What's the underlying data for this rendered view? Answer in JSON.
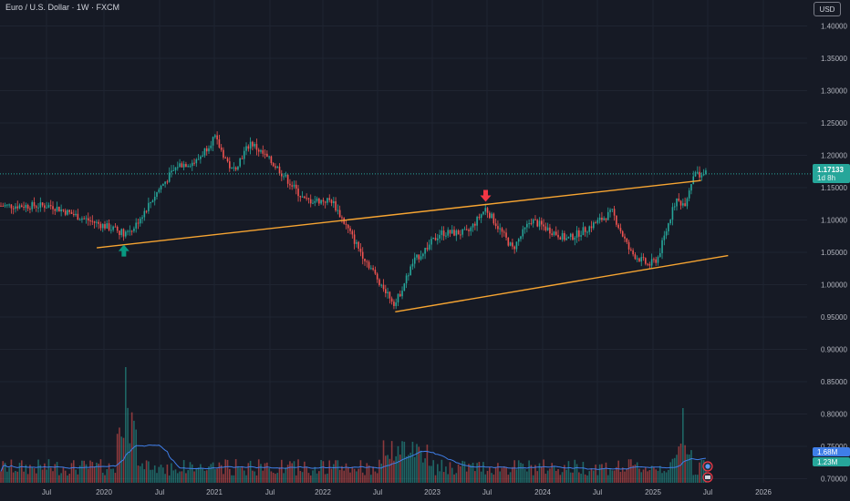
{
  "header": {
    "title": "Euro / U.S. Dollar · 1W · FXCM",
    "currency_button": "USD"
  },
  "colors": {
    "background": "#161a25",
    "up": "#26a69a",
    "down": "#ef5350",
    "trendline": "#f7a532",
    "volume_ma": "#3f7ee8",
    "grid": "#1f2431"
  },
  "price_badge": {
    "price": "1.17133",
    "countdown": "1d 8h"
  },
  "volume_badges": {
    "volume": "1.68M",
    "volume_ma": "1.23M"
  },
  "chart_data": {
    "type": "candlestick",
    "y_ticks": [
      "1.40000",
      "1.35000",
      "1.30000",
      "1.25000",
      "1.20000",
      "1.15000",
      "1.10000",
      "1.05000",
      "1.00000",
      "0.95000",
      "0.90000",
      "0.85000",
      "0.80000",
      "0.75000",
      "0.70000"
    ],
    "x_ticks": [
      "Jul",
      "2020",
      "Jul",
      "2021",
      "Jul",
      "2022",
      "Jul",
      "2023",
      "Jul",
      "2024",
      "Jul",
      "2025",
      "Jul",
      "2026"
    ],
    "ylim": [
      0.693,
      1.415
    ],
    "anchors": [
      [
        "2019-07",
        1.122
      ],
      [
        "2019-10",
        1.105
      ],
      [
        "2020-02",
        1.085
      ],
      [
        "2020-03",
        1.08
      ],
      [
        "2020-04",
        1.087
      ],
      [
        "2020-07",
        1.15
      ],
      [
        "2020-09",
        1.185
      ],
      [
        "2020-11",
        1.19
      ],
      [
        "2021-01",
        1.228
      ],
      [
        "2021-03",
        1.175
      ],
      [
        "2021-05",
        1.22
      ],
      [
        "2021-08",
        1.18
      ],
      [
        "2021-11",
        1.13
      ],
      [
        "2022-02",
        1.13
      ],
      [
        "2022-05",
        1.055
      ],
      [
        "2022-07",
        1.01
      ],
      [
        "2022-09",
        0.97
      ],
      [
        "2022-11",
        1.035
      ],
      [
        "2023-02",
        1.08
      ],
      [
        "2023-05",
        1.08
      ],
      [
        "2023-07",
        1.118
      ],
      [
        "2023-10",
        1.055
      ],
      [
        "2023-12",
        1.1
      ],
      [
        "2024-04",
        1.07
      ],
      [
        "2024-06",
        1.085
      ],
      [
        "2024-09",
        1.112
      ],
      [
        "2024-11",
        1.05
      ],
      [
        "2025-01",
        1.03
      ],
      [
        "2025-02",
        1.04
      ],
      [
        "2025-04",
        1.13
      ],
      [
        "2025-05",
        1.125
      ],
      [
        "2025-06",
        1.171
      ]
    ],
    "trendlines": [
      {
        "from": [
          "2019-12",
          1.057
        ],
        "to": [
          "2025-06",
          1.161
        ]
      },
      {
        "from": [
          "2022-09",
          0.958
        ],
        "to": [
          "2025-09",
          1.045
        ]
      }
    ],
    "markers": [
      {
        "type": "arrow-up",
        "date": "2020-03",
        "price": 1.052,
        "color": "#089981"
      },
      {
        "type": "arrow-down",
        "date": "2023-07",
        "price": 1.138,
        "color": "#f23645"
      }
    ],
    "last_price": 1.17133
  }
}
